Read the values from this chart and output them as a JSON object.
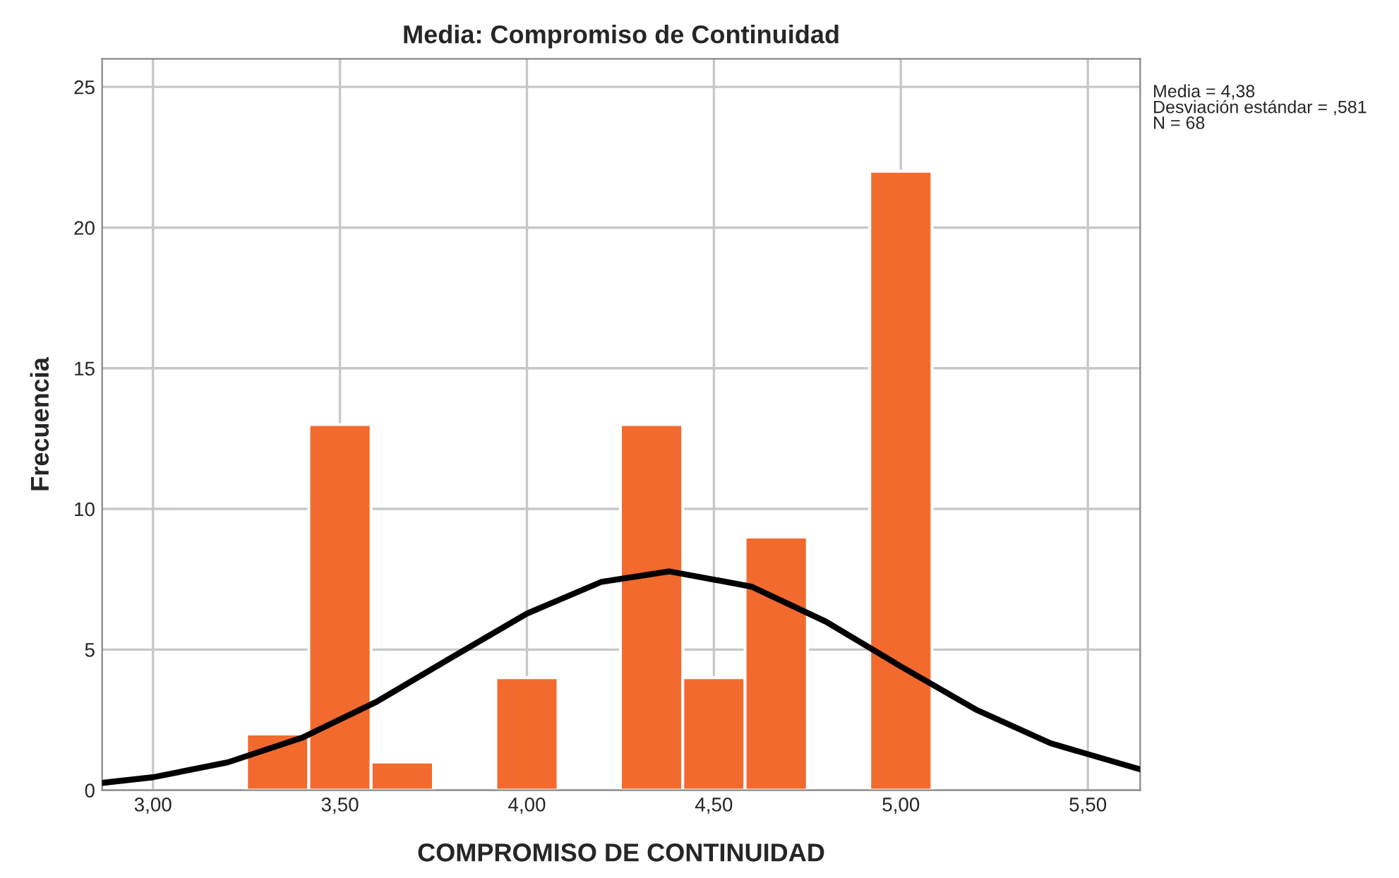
{
  "chart_data": {
    "type": "histogram",
    "title": "Media: Compromiso de Continuidad",
    "xlabel": "COMPROMISO DE CONTINUIDAD",
    "ylabel": "Frecuencia",
    "bins": [
      3.25,
      3.4167,
      3.5833,
      3.75,
      3.9167,
      4.0833,
      4.25,
      4.4167,
      4.5833,
      4.75,
      4.9167,
      5.0833
    ],
    "values": [
      2,
      13,
      1,
      0,
      4,
      0,
      13,
      4,
      9,
      0,
      22
    ],
    "color": "#f26a2e",
    "series": [
      {
        "type": "line",
        "color": "#000000",
        "x": [
          2.864,
          3.0,
          3.2,
          3.4,
          3.6,
          3.8,
          4.0,
          4.2,
          4.38,
          4.6,
          4.8,
          5.0,
          5.2,
          5.4,
          5.64
        ],
        "values": [
          0.26,
          0.46,
          0.99,
          1.87,
          3.16,
          4.73,
          6.28,
          7.41,
          7.78,
          7.24,
          5.99,
          4.4,
          2.87,
          1.67,
          0.74
        ]
      }
    ],
    "xlim": [
      2.864,
      5.64
    ],
    "ylim": [
      0,
      26
    ],
    "xticks": [
      {
        "value": 3.0,
        "label": "3,00"
      },
      {
        "value": 3.5,
        "label": "3,50"
      },
      {
        "value": 4.0,
        "label": "4,00"
      },
      {
        "value": 4.5,
        "label": "4,50"
      },
      {
        "value": 5.0,
        "label": "5,00"
      },
      {
        "value": 5.5,
        "label": "5,50"
      }
    ],
    "yticks": [
      0,
      5,
      10,
      15,
      20,
      25
    ],
    "grid": true,
    "annotations": [
      "Media = 4,38",
      "Desviación estándar = ,581",
      "N = 68"
    ]
  }
}
